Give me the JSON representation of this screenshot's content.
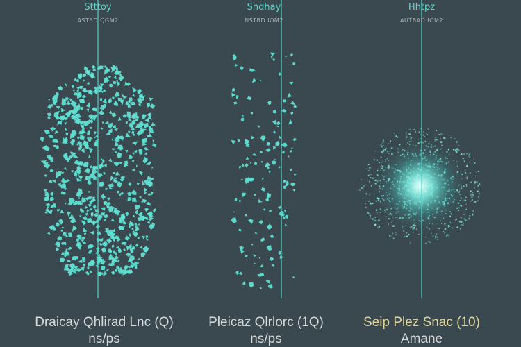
{
  "panels": [
    {
      "title": "Stttoy",
      "subtitle": "ASTBD QGM2",
      "caption": "Draicay Qhlirad Lnc (Q)",
      "unit": "ns/ps"
    },
    {
      "title": "Sndhay",
      "subtitle": "NSTBD IOM2",
      "caption": "Pleicaz Qlrlorc (1Q)",
      "unit": "ns/ps"
    },
    {
      "title": "Hhtpz",
      "subtitle": "AUTBAD IOM2",
      "caption": "Seip Plez Snac (10)",
      "unit": "Amane"
    }
  ]
}
